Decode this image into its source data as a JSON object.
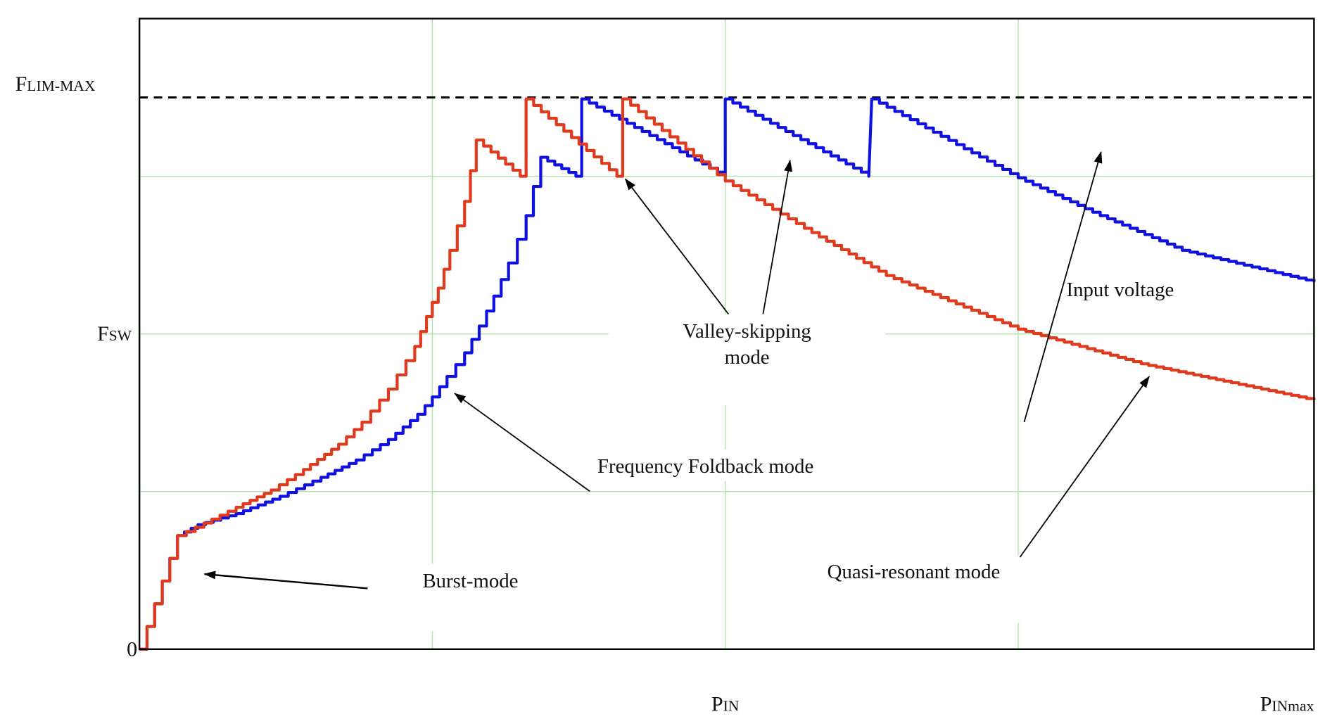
{
  "chart_data": {
    "type": "line",
    "title": "",
    "xlabel": "",
    "ylabel": "",
    "xlim": [
      0,
      4.01
    ],
    "ylim": [
      0,
      4
    ],
    "grid": true,
    "grid_color": "#b5e3b0",
    "x_ticks": [
      {
        "value": 2,
        "main": "P",
        "sub": "IN"
      },
      {
        "value": 4.01,
        "main": "P",
        "sub": "INmax"
      }
    ],
    "y_ticks": [
      {
        "value": 0,
        "main": "0",
        "sub": ""
      },
      {
        "value": 2,
        "main": "F",
        "sub": "SW"
      },
      {
        "value": 3.5,
        "main": "F",
        "sub": "LIM-MAX"
      }
    ],
    "reference_line": {
      "y": 3.5,
      "style": "dashed",
      "color": "#000000"
    },
    "series": [
      {
        "color": "#1010e0",
        "points": [
          [
            0,
            0
          ],
          [
            0.13,
            0.72
          ],
          [
            0.2,
            0.79
          ],
          [
            0.33,
            0.86
          ],
          [
            0.48,
            0.97
          ],
          [
            0.62,
            1.09
          ],
          [
            0.74,
            1.2
          ],
          [
            0.85,
            1.33
          ],
          [
            0.95,
            1.49
          ],
          [
            1.0,
            1.6
          ],
          [
            1.05,
            1.73
          ],
          [
            1.11,
            1.88
          ],
          [
            1.16,
            2.05
          ],
          [
            1.21,
            2.24
          ],
          [
            1.26,
            2.45
          ],
          [
            1.32,
            2.75
          ],
          [
            1.37,
            3.12
          ],
          [
            1.49,
            3.0
          ],
          [
            1.51,
            3.49
          ],
          [
            2.0,
            3.0
          ],
          [
            2.0,
            3.49
          ],
          [
            2.49,
            3.0
          ],
          [
            2.5,
            3.49
          ],
          [
            3.0,
            2.99
          ],
          [
            3.28,
            2.75
          ],
          [
            3.56,
            2.53
          ],
          [
            4.01,
            2.33
          ]
        ]
      },
      {
        "color": "#e03a1e",
        "points": [
          [
            0,
            0
          ],
          [
            0.13,
            0.72
          ],
          [
            0.22,
            0.8
          ],
          [
            0.33,
            0.9
          ],
          [
            0.45,
            1.01
          ],
          [
            0.56,
            1.14
          ],
          [
            0.68,
            1.3
          ],
          [
            0.76,
            1.44
          ],
          [
            0.85,
            1.65
          ],
          [
            0.94,
            1.92
          ],
          [
            0.98,
            2.11
          ],
          [
            1.02,
            2.29
          ],
          [
            1.06,
            2.53
          ],
          [
            1.11,
            2.84
          ],
          [
            1.15,
            3.23
          ],
          [
            1.3,
            3.0
          ],
          [
            1.32,
            3.49
          ],
          [
            1.63,
            3.0
          ],
          [
            1.65,
            3.49
          ],
          [
            2.0,
            2.97
          ],
          [
            2.27,
            2.67
          ],
          [
            2.55,
            2.37
          ],
          [
            3.0,
            2.03
          ],
          [
            3.42,
            1.81
          ],
          [
            4.01,
            1.58
          ]
        ]
      }
    ],
    "annotations": {
      "valley_line1": "Valley-skipping",
      "valley_line2": "mode",
      "input_voltage": "Input voltage",
      "foldback": "Frequency Foldback mode",
      "burst": "Burst-mode",
      "quasi": "Quasi-resonant mode"
    }
  }
}
